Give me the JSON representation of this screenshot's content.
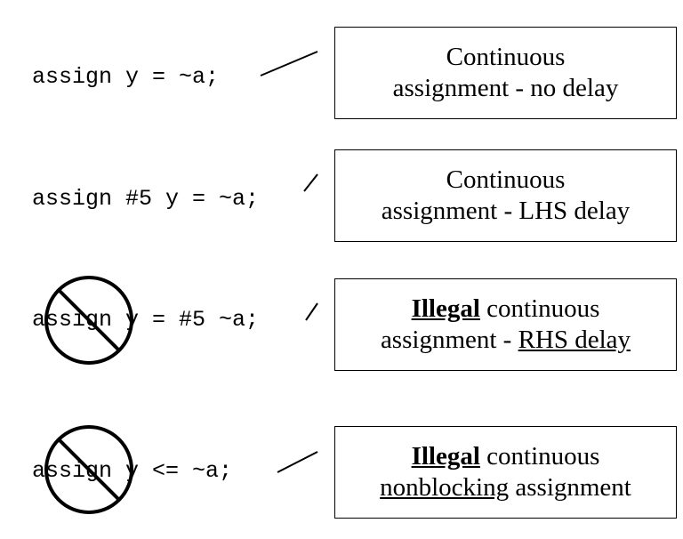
{
  "rows": [
    {
      "code": "assign y = ~a;",
      "box": {
        "line1": "Continuous",
        "line2": "assignment - no delay"
      }
    },
    {
      "code": "assign #5 y = ~a;",
      "box": {
        "line1": "Continuous",
        "line2": "assignment - LHS delay"
      }
    },
    {
      "code_keyword": "assign",
      "code_rest": " y = #5 ~a;",
      "prohibited": true,
      "box": {
        "line1_strong": "Illegal",
        "line1_rest": " continuous",
        "line2_prefix": "assignment - ",
        "line2_underlined": "RHS delay"
      }
    },
    {
      "code_keyword": "assign",
      "code_rest": " y <= ~a;",
      "prohibited": true,
      "box": {
        "line1_strong": "Illegal",
        "line1_rest": " continuous",
        "line2_underlined": "nonblocking",
        "line2_rest": " assignment"
      }
    }
  ]
}
